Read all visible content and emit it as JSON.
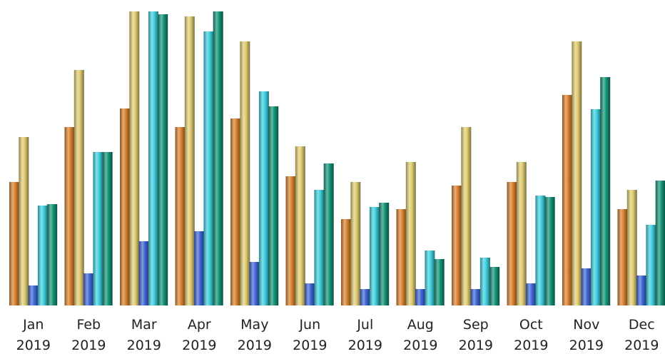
{
  "chart_data": {
    "type": "bar",
    "categories": [
      "Jan 2019",
      "Feb 2019",
      "Mar 2019",
      "Apr 2019",
      "May 2019",
      "Jun 2019",
      "Jul 2019",
      "Aug 2019",
      "Sep 2019",
      "Oct 2019",
      "Nov 2019",
      "Dec 2019"
    ],
    "tick_labels": [
      {
        "month": "Jan",
        "year": "2019"
      },
      {
        "month": "Feb",
        "year": "2019"
      },
      {
        "month": "Mar",
        "year": "2019"
      },
      {
        "month": "Apr",
        "year": "2019"
      },
      {
        "month": "May",
        "year": "2019"
      },
      {
        "month": "Jun",
        "year": "2019"
      },
      {
        "month": "Jul",
        "year": "2019"
      },
      {
        "month": "Aug",
        "year": "2019"
      },
      {
        "month": "Sep",
        "year": "2019"
      },
      {
        "month": "Oct",
        "year": "2019"
      },
      {
        "month": "Nov",
        "year": "2019"
      },
      {
        "month": "Dec",
        "year": "2019"
      }
    ],
    "series": [
      {
        "color": "#d9812e",
        "values": [
          173,
          250,
          276,
          250,
          262,
          181,
          121,
          135,
          168,
          173,
          295,
          135
        ]
      },
      {
        "color": "#e0cc72",
        "values": [
          236,
          330,
          412,
          405,
          370,
          223,
          173,
          201,
          250,
          201,
          370,
          162
        ]
      },
      {
        "color": "#3f66d6",
        "values": [
          28,
          45,
          90,
          104,
          61,
          31,
          23,
          23,
          23,
          31,
          52,
          42
        ]
      },
      {
        "color": "#3ed0e0",
        "values": [
          140,
          215,
          412,
          384,
          300,
          162,
          138,
          77,
          67,
          154,
          275,
          113
        ]
      },
      {
        "color": "#139377",
        "values": [
          142,
          215,
          408,
          412,
          279,
          199,
          144,
          65,
          54,
          152,
          320,
          175
        ]
      }
    ],
    "ylim": [
      0,
      412
    ],
    "grid": false,
    "legend": "none"
  }
}
